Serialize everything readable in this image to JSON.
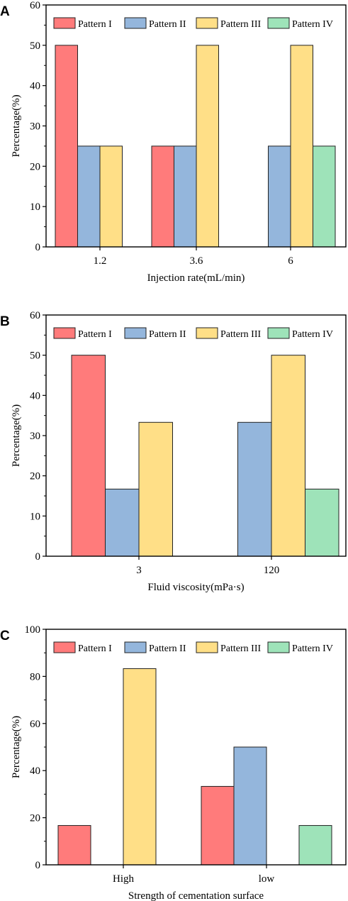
{
  "chart_data": [
    {
      "panel": "A",
      "type": "bar",
      "xlabel": "Injection rate(mL/min)",
      "ylabel": "Percentage(%)",
      "ylim": [
        0,
        60
      ],
      "yticks": [
        0,
        10,
        20,
        30,
        40,
        50,
        60
      ],
      "categories": [
        "1.2",
        "3.6",
        "6"
      ],
      "legend_position": "top",
      "grid": false,
      "series": [
        {
          "name": "Pattern I",
          "color": "#ff7b7b",
          "values": [
            50,
            25,
            0
          ]
        },
        {
          "name": "Pattern II",
          "color": "#94b6dc",
          "values": [
            25,
            25,
            25
          ]
        },
        {
          "name": "Pattern III",
          "color": "#ffdf87",
          "values": [
            25,
            50,
            50
          ]
        },
        {
          "name": "Pattern IV",
          "color": "#9ee3b9",
          "values": [
            0,
            0,
            25
          ]
        }
      ]
    },
    {
      "panel": "B",
      "type": "bar",
      "xlabel": "Fluid viscosity(mPa·s)",
      "ylabel": "Percentage(%)",
      "ylim": [
        0,
        60
      ],
      "yticks": [
        0,
        10,
        20,
        30,
        40,
        50,
        60
      ],
      "categories": [
        "3",
        "120"
      ],
      "legend_position": "top",
      "grid": false,
      "series": [
        {
          "name": "Pattern I",
          "color": "#ff7b7b",
          "values": [
            50,
            0
          ]
        },
        {
          "name": "Pattern II",
          "color": "#94b6dc",
          "values": [
            16.7,
            33.3
          ]
        },
        {
          "name": "Pattern III",
          "color": "#ffdf87",
          "values": [
            33.3,
            50
          ]
        },
        {
          "name": "Pattern IV",
          "color": "#9ee3b9",
          "values": [
            0,
            16.7
          ]
        }
      ]
    },
    {
      "panel": "C",
      "type": "bar",
      "xlabel": "Strength of cementation surface",
      "ylabel": "Percentage(%)",
      "ylim": [
        0,
        100
      ],
      "yticks": [
        0,
        20,
        40,
        60,
        80,
        100
      ],
      "categories": [
        "High",
        "low"
      ],
      "legend_position": "top",
      "grid": false,
      "series": [
        {
          "name": "Pattern I",
          "color": "#ff7b7b",
          "values": [
            16.7,
            33.3
          ]
        },
        {
          "name": "Pattern II",
          "color": "#94b6dc",
          "values": [
            0,
            50
          ]
        },
        {
          "name": "Pattern III",
          "color": "#ffdf87",
          "values": [
            83.3,
            0
          ]
        },
        {
          "name": "Pattern IV",
          "color": "#9ee3b9",
          "values": [
            0,
            16.7
          ]
        }
      ]
    }
  ]
}
